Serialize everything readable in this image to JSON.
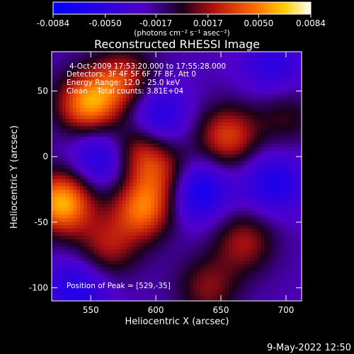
{
  "chart_data": {
    "type": "heatmap",
    "title": "Reconstructed RHESSI Image",
    "xlabel": "Heliocentric X (arcsec)",
    "ylabel": "Heliocentric Y (arcsec)",
    "xlim": [
      520,
      712
    ],
    "ylim": [
      -110,
      80
    ],
    "xticks": [
      550,
      600,
      650,
      700
    ],
    "yticks": [
      50,
      0,
      -50,
      -100
    ],
    "colorbar": {
      "min": -0.0084,
      "max": 0.0084,
      "ticks": [
        "-0.0084",
        "-0.0050",
        "-0.0017",
        "0.0017",
        "0.0050",
        "0.0084"
      ],
      "unit_label": "(photons cm⁻² s⁻¹ asec⁻²)",
      "placement": "top"
    },
    "annotations": [
      "4-Oct-2009 17:53:20.000 to 17:55:28.000",
      "Detectors: 3F 4F 5F 6F 7F 8F, Att 0",
      "Energy Range: 12.0 - 25.0 keV",
      "Clean    Total counts: 3.81E+04"
    ],
    "peak_label": "Position of Peak = [529,-35]",
    "sources": [
      {
        "x": 528,
        "y": -35,
        "value": 0.0084
      },
      {
        "x": 548,
        "y": 40,
        "value": 0.0075
      },
      {
        "x": 575,
        "y": 58,
        "value": 0.005
      },
      {
        "x": 585,
        "y": 5,
        "value": 0.0055
      },
      {
        "x": 590,
        "y": -40,
        "value": 0.0065
      },
      {
        "x": 562,
        "y": -70,
        "value": 0.004
      },
      {
        "x": 610,
        "y": -15,
        "value": 0.0045
      },
      {
        "x": 655,
        "y": 15,
        "value": 0.0055
      },
      {
        "x": 668,
        "y": -65,
        "value": 0.004
      },
      {
        "x": 640,
        "y": -100,
        "value": 0.0035
      },
      {
        "x": 700,
        "y": 30,
        "value": 0.0025
      },
      {
        "x": 630,
        "y": -25,
        "value": -0.006
      },
      {
        "x": 560,
        "y": 0,
        "value": -0.005
      },
      {
        "x": 600,
        "y": 30,
        "value": -0.0045
      },
      {
        "x": 690,
        "y": -20,
        "value": -0.004
      },
      {
        "x": 540,
        "y": -100,
        "value": -0.004
      },
      {
        "x": 690,
        "y": 70,
        "value": -0.003
      }
    ]
  },
  "footer": {
    "timestamp": "9-May-2022 12:50"
  }
}
